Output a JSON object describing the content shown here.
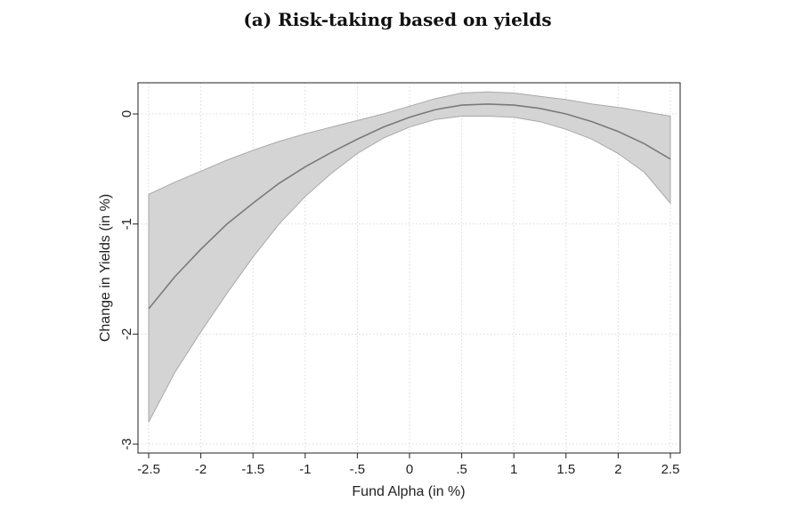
{
  "chart_data": {
    "type": "line",
    "title": "(a) Risk-taking based on yields",
    "xlabel": "Fund Alpha (in %)",
    "ylabel": "Change in Yields (in %)",
    "xlim": [
      -2.5,
      2.5
    ],
    "ylim": [
      -3,
      0
    ],
    "x_ticks": [
      "-2.5",
      "-2",
      "-1.5",
      "-1",
      "-.5",
      "0",
      ".5",
      "1",
      "1.5",
      "2",
      "2.5"
    ],
    "y_ticks": [
      "-3",
      "-2",
      "-1",
      "0"
    ],
    "grid": true,
    "legend": "none",
    "colors": {
      "line": "#7a7a7a",
      "band": "#d4d4d4",
      "band_edge": "#a8a8a8"
    },
    "series": [
      {
        "x": [
          -2.5,
          -2.25,
          -2,
          -1.75,
          -1.5,
          -1.25,
          -1,
          -0.75,
          -0.5,
          -0.25,
          0,
          0.25,
          0.5,
          0.75,
          1,
          1.25,
          1.5,
          1.75,
          2,
          2.25,
          2.5
        ],
        "y": [
          -1.77,
          -1.48,
          -1.23,
          -1.0,
          -0.81,
          -0.63,
          -0.48,
          -0.35,
          -0.23,
          -0.12,
          -0.03,
          0.04,
          0.08,
          0.09,
          0.08,
          0.05,
          0.0,
          -0.07,
          -0.16,
          -0.27,
          -0.41
        ],
        "lower": [
          -2.8,
          -2.35,
          -1.98,
          -1.63,
          -1.3,
          -1.0,
          -0.75,
          -0.54,
          -0.36,
          -0.22,
          -0.12,
          -0.05,
          -0.02,
          -0.02,
          -0.03,
          -0.07,
          -0.14,
          -0.23,
          -0.36,
          -0.53,
          -0.81
        ],
        "upper": [
          -0.73,
          -0.62,
          -0.52,
          -0.42,
          -0.33,
          -0.25,
          -0.18,
          -0.12,
          -0.06,
          0.0,
          0.07,
          0.14,
          0.19,
          0.2,
          0.19,
          0.16,
          0.13,
          0.09,
          0.06,
          0.02,
          -0.02
        ]
      }
    ]
  }
}
